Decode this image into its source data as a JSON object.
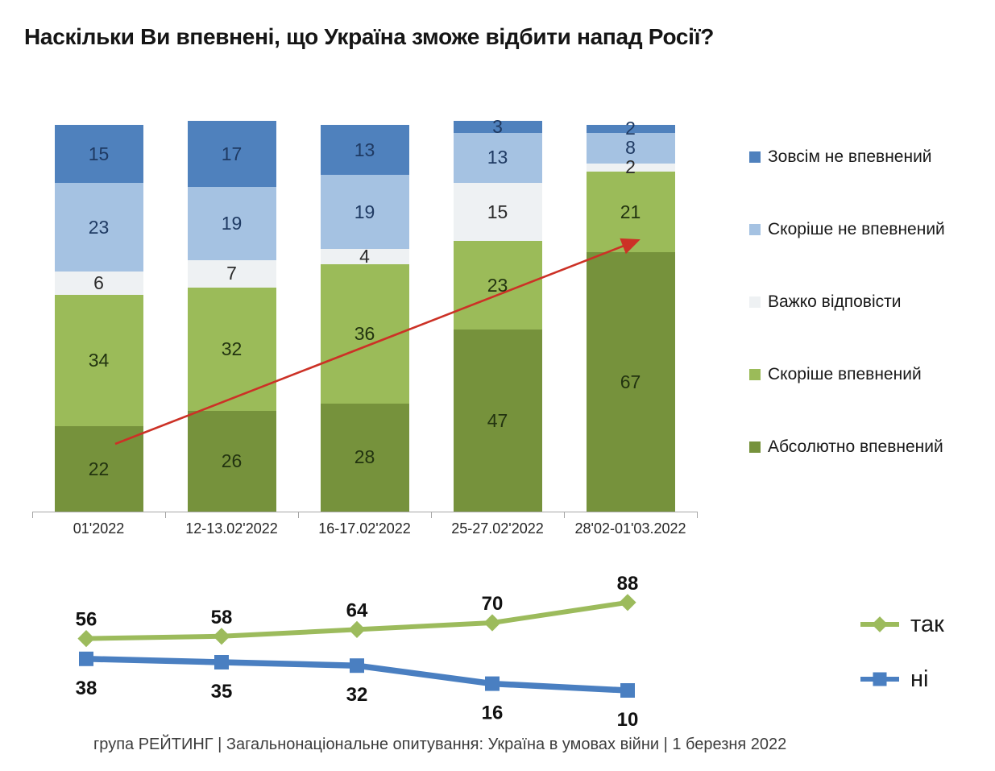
{
  "title": "Наскільки Ви впевнені, що Україна зможе відбити напад Росії?",
  "footer": "група РЕЙТИНГ | Загальнонаціональне опитування: Україна в умовах війни | 1 березня 2022",
  "colors": {
    "background": "#ffffff",
    "axis": "#a6a6a6",
    "arrow": "#cc3126",
    "value_label_dark": "#111111"
  },
  "chart_data": [
    {
      "type": "bar",
      "subtype": "stacked-100",
      "title": "",
      "xlabel": "",
      "ylabel": "",
      "legend_position": "right",
      "grid": false,
      "categories": [
        "01'2022",
        "12-13.02'2022",
        "16-17.02'2022",
        "25-27.02'2022",
        "28'02-01'03.2022"
      ],
      "series": [
        {
          "name": "Зовсім не впевнений",
          "color": "#4f81bd",
          "label_color": "#1f3a63",
          "values": [
            15,
            17,
            13,
            3,
            2
          ]
        },
        {
          "name": "Скоріше не впевнений",
          "color": "#a5c2e2",
          "label_color": "#1f3a63",
          "values": [
            23,
            19,
            19,
            13,
            8
          ]
        },
        {
          "name": "Важко відповісти",
          "color": "#eef1f3",
          "label_color": "#2b2b2b",
          "values": [
            6,
            7,
            4,
            15,
            2
          ]
        },
        {
          "name": "Скоріше впевнений",
          "color": "#9bbb59",
          "label_color": "#223310",
          "values": [
            34,
            32,
            36,
            23,
            21
          ]
        },
        {
          "name": "Абсолютно впевнений",
          "color": "#76923c",
          "label_color": "#223310",
          "values": [
            22,
            26,
            28,
            47,
            67
          ]
        }
      ],
      "annotation": {
        "type": "arrow",
        "color": "#cc3126",
        "meaning": "growth of confidence from first to last survey"
      }
    },
    {
      "type": "line",
      "title": "",
      "xlabel": "",
      "ylabel": "",
      "legend_position": "right",
      "grid": false,
      "categories": [
        "01'2022",
        "12-13.02'2022",
        "16-17.02'2022",
        "25-27.02'2022",
        "28'02-01'03.2022"
      ],
      "series": [
        {
          "name": "так",
          "color": "#9cbb5c",
          "marker": "diamond",
          "values": [
            56,
            58,
            64,
            70,
            88
          ]
        },
        {
          "name": "ні",
          "color": "#4a7fc1",
          "marker": "square",
          "values": [
            38,
            35,
            32,
            16,
            10
          ]
        }
      ]
    }
  ]
}
